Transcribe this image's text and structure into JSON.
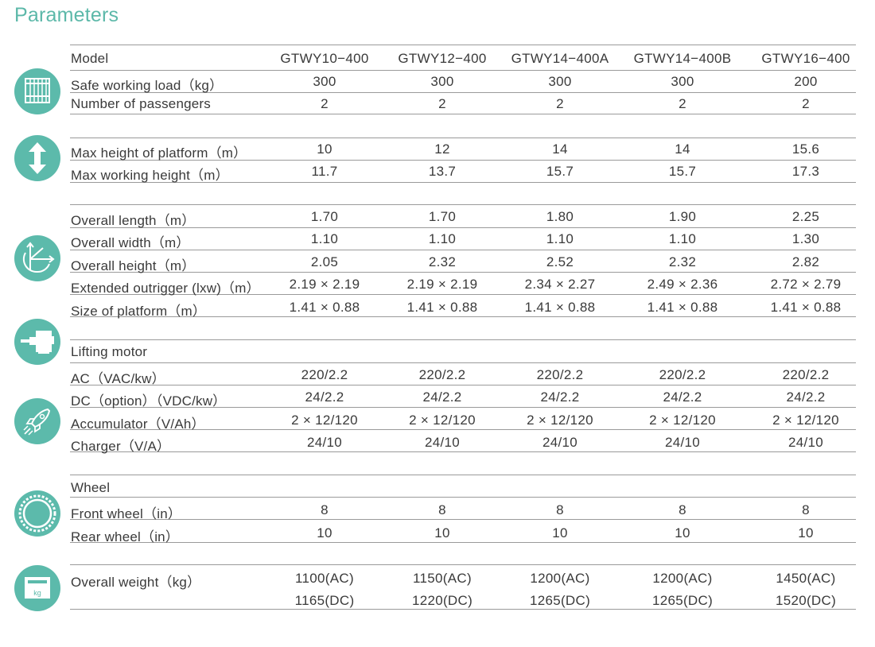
{
  "title": "Parameters",
  "header": {
    "label": "Model",
    "models": [
      "GTWY10−400",
      "GTWY12−400",
      "GTWY14−400A",
      "GTWY14−400B",
      "GTWY16−400"
    ]
  },
  "rows": [
    {
      "label": "Safe working load（kg）",
      "values": [
        "300",
        "300",
        "300",
        "300",
        "200"
      ]
    },
    {
      "label": "Number of passengers",
      "values": [
        "2",
        "2",
        "2",
        "2",
        "2"
      ]
    },
    {
      "label": "Max height of platform（m）",
      "values": [
        "10",
        "12",
        "14",
        "14",
        "15.6"
      ]
    },
    {
      "label": "Max working height（m）",
      "values": [
        "11.7",
        "13.7",
        "15.7",
        "15.7",
        "17.3"
      ]
    },
    {
      "label": "Overall length（m）",
      "values": [
        "1.70",
        "1.70",
        "1.80",
        "1.90",
        "2.25"
      ]
    },
    {
      "label": "Overall width（m）",
      "values": [
        "1.10",
        "1.10",
        "1.10",
        "1.10",
        "1.30"
      ]
    },
    {
      "label": "Overall height（m）",
      "values": [
        "2.05",
        "2.32",
        "2.52",
        "2.32",
        "2.82"
      ]
    },
    {
      "label": "Extended outrigger (lxw)（m）",
      "values": [
        "2.19 × 2.19",
        "2.19 × 2.19",
        "2.34 × 2.27",
        "2.49 × 2.36",
        "2.72 × 2.79"
      ]
    },
    {
      "label": "Size of platform（m）",
      "values": [
        "1.41 × 0.88",
        "1.41 × 0.88",
        "1.41 × 0.88",
        "1.41 × 0.88",
        "1.41 × 0.88"
      ]
    },
    {
      "label": "Lifting motor",
      "values": []
    },
    {
      "label": "AC（VAC/kw）",
      "values": [
        "220/2.2",
        "220/2.2",
        "220/2.2",
        "220/2.2",
        "220/2.2"
      ]
    },
    {
      "label": "DC（option）（VDC/kw）",
      "values": [
        "24/2.2",
        "24/2.2",
        "24/2.2",
        "24/2.2",
        "24/2.2"
      ]
    },
    {
      "label": "Accumulator（V/Ah）",
      "values": [
        "2 × 12/120",
        "2 × 12/120",
        "2 × 12/120",
        "2 × 12/120",
        "2 × 12/120"
      ]
    },
    {
      "label": "Charger（V/A）",
      "values": [
        "24/10",
        "24/10",
        "24/10",
        "24/10",
        "24/10"
      ]
    },
    {
      "label": "Wheel",
      "values": []
    },
    {
      "label": "Front wheel（in）",
      "values": [
        "8",
        "8",
        "8",
        "8",
        "8"
      ]
    },
    {
      "label": "Rear wheel（in）",
      "values": [
        "10",
        "10",
        "10",
        "10",
        "10"
      ]
    },
    {
      "label": "Overall weight（kg）",
      "values": [
        "1100(AC)",
        "1150(AC)",
        "1200(AC)",
        "1200(AC)",
        "1450(AC)"
      ]
    },
    {
      "label": "",
      "values": [
        "1165(DC)",
        "1220(DC)",
        "1265(DC)",
        "1265(DC)",
        "1520(DC)"
      ]
    }
  ],
  "icons": {
    "names": [
      "cage-icon",
      "height-arrow-icon",
      "dimension-axes-icon",
      "motor-icon",
      "rocket-icon",
      "wheel-gear-icon",
      "weight-scale-icon"
    ],
    "weight_label": "kg",
    "color": "#5cbaab"
  },
  "colors": {
    "accent": "#5cb8a9",
    "rule": "#9a9a9a",
    "text": "#3a3a3a"
  }
}
